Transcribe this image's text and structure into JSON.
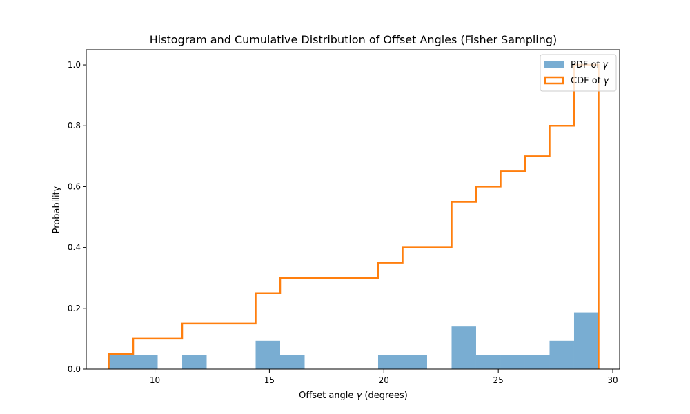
{
  "chart_data": {
    "type": "histogram",
    "title": "Histogram and Cumulative Distribution of Offset Angles (Fisher Sampling)",
    "xlabel_prefix": "Offset angle ",
    "xlabel_symbol": "γ",
    "xlabel_suffix": " (degrees)",
    "ylabel": "Probability",
    "xlim": [
      7.0,
      30.3
    ],
    "ylim": [
      0.0,
      1.05
    ],
    "xticks": [
      10,
      15,
      20,
      25,
      30
    ],
    "yticks": [
      0.0,
      0.2,
      0.4,
      0.6,
      0.8,
      1.0
    ],
    "ytick_labels": [
      "0.0",
      "0.2",
      "0.4",
      "0.6",
      "0.8",
      "1.0"
    ],
    "legend_position": "top-right",
    "bin_edges": [
      7.98,
      9.05,
      10.12,
      11.19,
      12.26,
      13.33,
      14.4,
      15.47,
      16.54,
      17.61,
      18.68,
      19.75,
      20.82,
      21.89,
      22.96,
      24.03,
      25.1,
      26.17,
      27.24,
      28.31,
      29.38
    ],
    "series": [
      {
        "name_prefix": "PDF of ",
        "name_symbol": "γ",
        "kind": "bars",
        "color": "#1f77b4",
        "opacity": 0.6,
        "values": [
          0.0467,
          0.0467,
          0.0,
          0.0467,
          0.0,
          0.0,
          0.0934,
          0.0467,
          0.0,
          0.0,
          0.0,
          0.0467,
          0.0467,
          0.0,
          0.1402,
          0.0467,
          0.0467,
          0.0467,
          0.0934,
          0.1869
        ]
      },
      {
        "name_prefix": "CDF of ",
        "name_symbol": "γ",
        "kind": "step",
        "color": "#ff7f0e",
        "values": [
          0.05,
          0.1,
          0.1,
          0.15,
          0.15,
          0.15,
          0.25,
          0.3,
          0.3,
          0.3,
          0.3,
          0.35,
          0.4,
          0.4,
          0.55,
          0.6,
          0.65,
          0.7,
          0.8,
          1.0
        ]
      }
    ]
  }
}
